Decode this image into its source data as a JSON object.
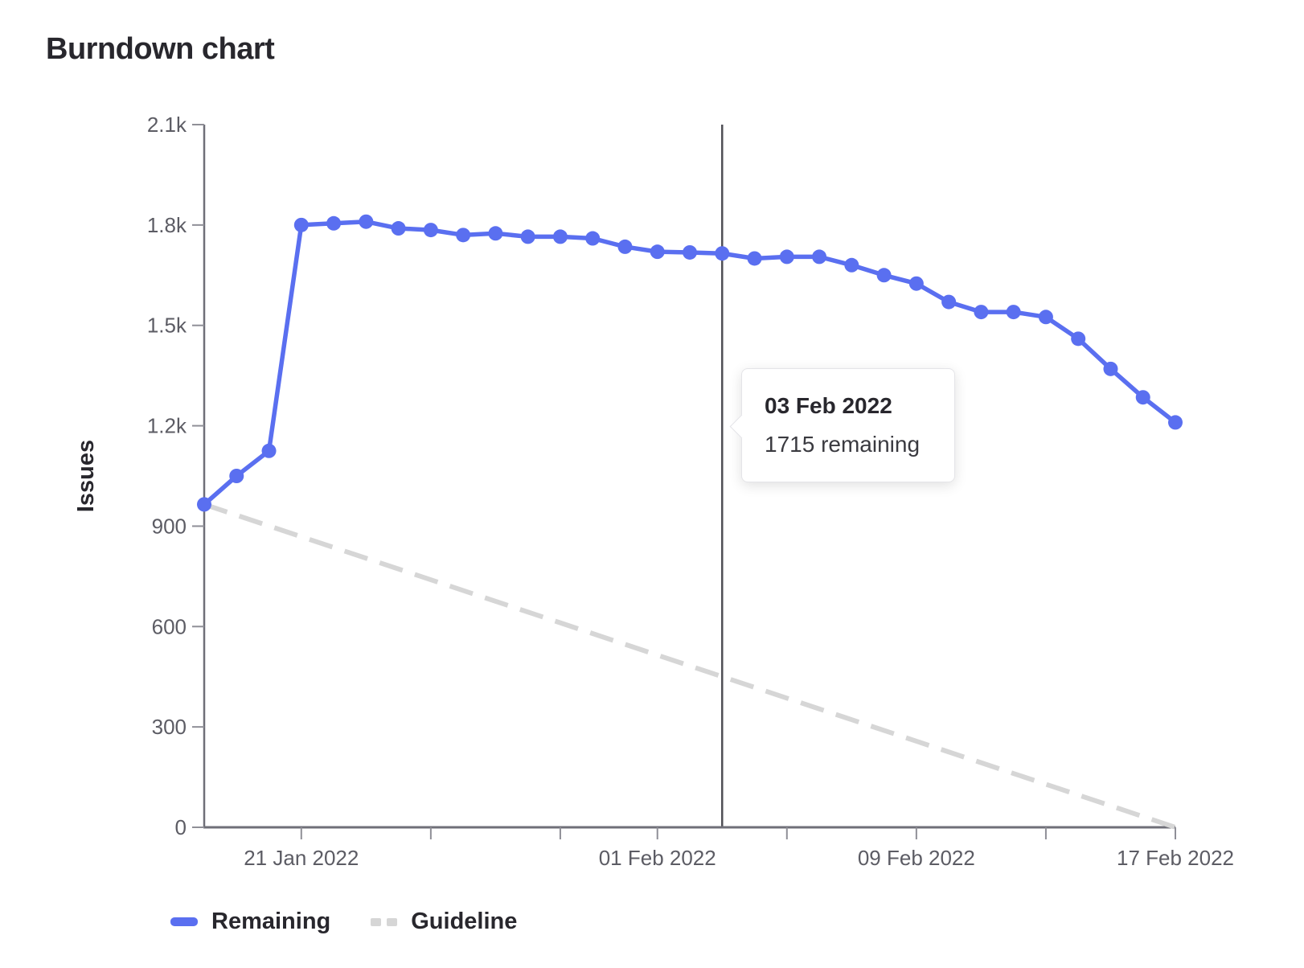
{
  "page": {
    "title": "Burndown chart"
  },
  "chart_data": {
    "type": "line",
    "title": "Burndown chart",
    "xlabel": "",
    "ylabel": "Issues",
    "ylim": [
      0,
      2100
    ],
    "grid": false,
    "legend_position": "bottom",
    "y_ticks": [
      {
        "value": 0,
        "label": "0"
      },
      {
        "value": 300,
        "label": "300"
      },
      {
        "value": 600,
        "label": "600"
      },
      {
        "value": 900,
        "label": "900"
      },
      {
        "value": 1200,
        "label": "1.2k"
      },
      {
        "value": 1500,
        "label": "1.5k"
      },
      {
        "value": 1800,
        "label": "1.8k"
      },
      {
        "value": 2100,
        "label": "2.1k"
      }
    ],
    "dates": [
      "18 Jan 2022",
      "19 Jan 2022",
      "20 Jan 2022",
      "21 Jan 2022",
      "22 Jan 2022",
      "23 Jan 2022",
      "24 Jan 2022",
      "25 Jan 2022",
      "26 Jan 2022",
      "27 Jan 2022",
      "28 Jan 2022",
      "29 Jan 2022",
      "30 Jan 2022",
      "31 Jan 2022",
      "01 Feb 2022",
      "02 Feb 2022",
      "03 Feb 2022",
      "04 Feb 2022",
      "05 Feb 2022",
      "06 Feb 2022",
      "07 Feb 2022",
      "08 Feb 2022",
      "09 Feb 2022",
      "10 Feb 2022",
      "11 Feb 2022",
      "12 Feb 2022",
      "13 Feb 2022",
      "14 Feb 2022",
      "15 Feb 2022",
      "16 Feb 2022",
      "17 Feb 2022"
    ],
    "x_tick_dates": [
      "21 Jan 2022",
      "25 Jan 2022",
      "29 Jan 2022",
      "01 Feb 2022",
      "05 Feb 2022",
      "09 Feb 2022",
      "13 Feb 2022",
      "17 Feb 2022"
    ],
    "x_label_dates": [
      "21 Jan 2022",
      "01 Feb 2022",
      "09 Feb 2022",
      "17 Feb 2022"
    ],
    "series": [
      {
        "name": "Remaining",
        "type": "line",
        "style": "solid",
        "color": "#5a6ff0",
        "values": [
          965,
          1050,
          1125,
          1800,
          1805,
          1810,
          1790,
          1785,
          1770,
          1775,
          1765,
          1765,
          1760,
          1735,
          1720,
          1718,
          1715,
          1700,
          1705,
          1705,
          1680,
          1650,
          1625,
          1570,
          1540,
          1540,
          1525,
          1460,
          1370,
          1285,
          1210
        ]
      },
      {
        "name": "Guideline",
        "type": "line",
        "style": "dashed",
        "color": "#d6d6d6",
        "endpoints": [
          {
            "date": "18 Jan 2022",
            "value": 965
          },
          {
            "date": "17 Feb 2022",
            "value": 0
          }
        ]
      }
    ],
    "hover_marker": {
      "date": "03 Feb 2022",
      "value": 1715
    }
  },
  "tooltip": {
    "date": "03 Feb 2022",
    "value_text": "1715 remaining"
  },
  "legend": {
    "items": [
      {
        "label": "Remaining",
        "swatch": "solid",
        "color": "#5a6ff0"
      },
      {
        "label": "Guideline",
        "swatch": "dashed",
        "color": "#d6d6d6"
      }
    ]
  },
  "colors": {
    "remaining_line": "#5a6ff0",
    "guideline_line": "#d6d6d6",
    "axis_line": "#6f6f78",
    "tick_mark": "#8f8f97",
    "tick_text": "#5c5c64",
    "hover_line": "#505056",
    "heading_text": "#28272d",
    "tooltip_border": "#e4e4e8",
    "background": "#ffffff"
  }
}
